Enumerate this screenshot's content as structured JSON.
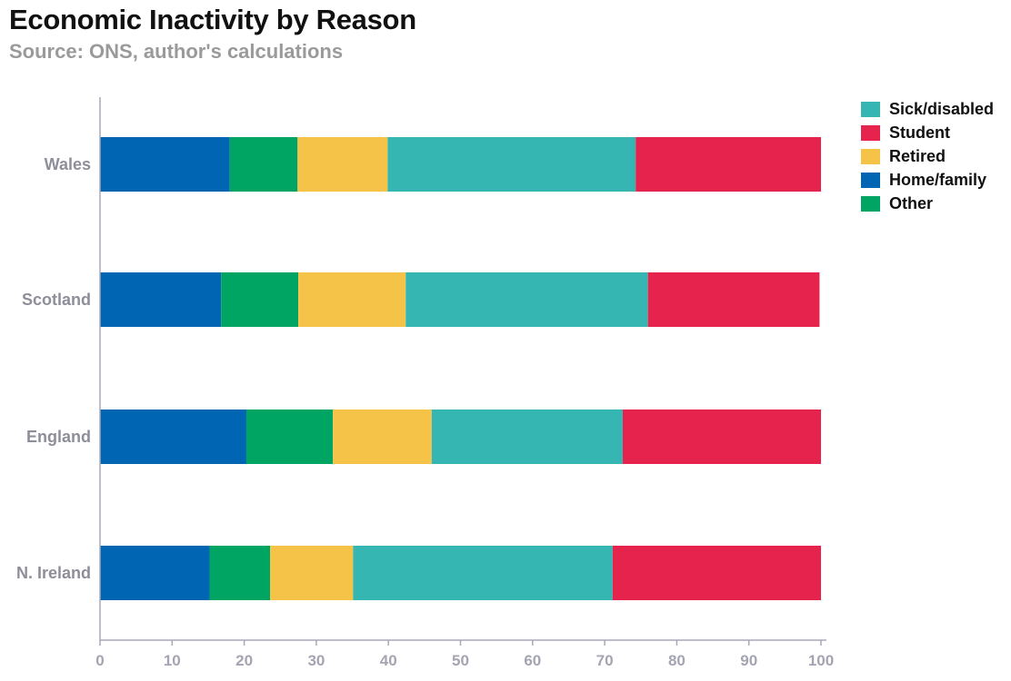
{
  "title": "Economic Inactivity by Reason",
  "subtitle": "Source: ONS, author's calculations",
  "chart_data": {
    "type": "bar",
    "orientation": "horizontal",
    "stacked": true,
    "categories": [
      "Wales",
      "Scotland",
      "England",
      "N. Ireland"
    ],
    "series": [
      {
        "name": "Home/family",
        "color": "#0066b3",
        "values": [
          18.0,
          16.8,
          20.3,
          15.2
        ]
      },
      {
        "name": "Other",
        "color": "#00a564",
        "values": [
          9.4,
          10.7,
          12.0,
          8.4
        ]
      },
      {
        "name": "Retired",
        "color": "#f4c348",
        "values": [
          12.5,
          14.9,
          13.7,
          11.5
        ]
      },
      {
        "name": "Sick/disabled",
        "color": "#36b6b2",
        "values": [
          34.4,
          33.6,
          26.5,
          36.0
        ]
      },
      {
        "name": "Student",
        "color": "#e5234d",
        "values": [
          25.7,
          23.8,
          27.5,
          28.9
        ]
      }
    ],
    "xlim": [
      0,
      100
    ],
    "xticks": [
      0,
      10,
      20,
      30,
      40,
      50,
      60,
      70,
      80,
      90,
      100
    ],
    "grid": false,
    "legend": {
      "position": "top-right",
      "items": [
        {
          "name": "Sick/disabled",
          "color": "#36b6b2"
        },
        {
          "name": "Student",
          "color": "#e5234d"
        },
        {
          "name": "Retired",
          "color": "#f4c348"
        },
        {
          "name": "Home/family",
          "color": "#0066b3"
        },
        {
          "name": "Other",
          "color": "#00a564"
        }
      ]
    }
  }
}
